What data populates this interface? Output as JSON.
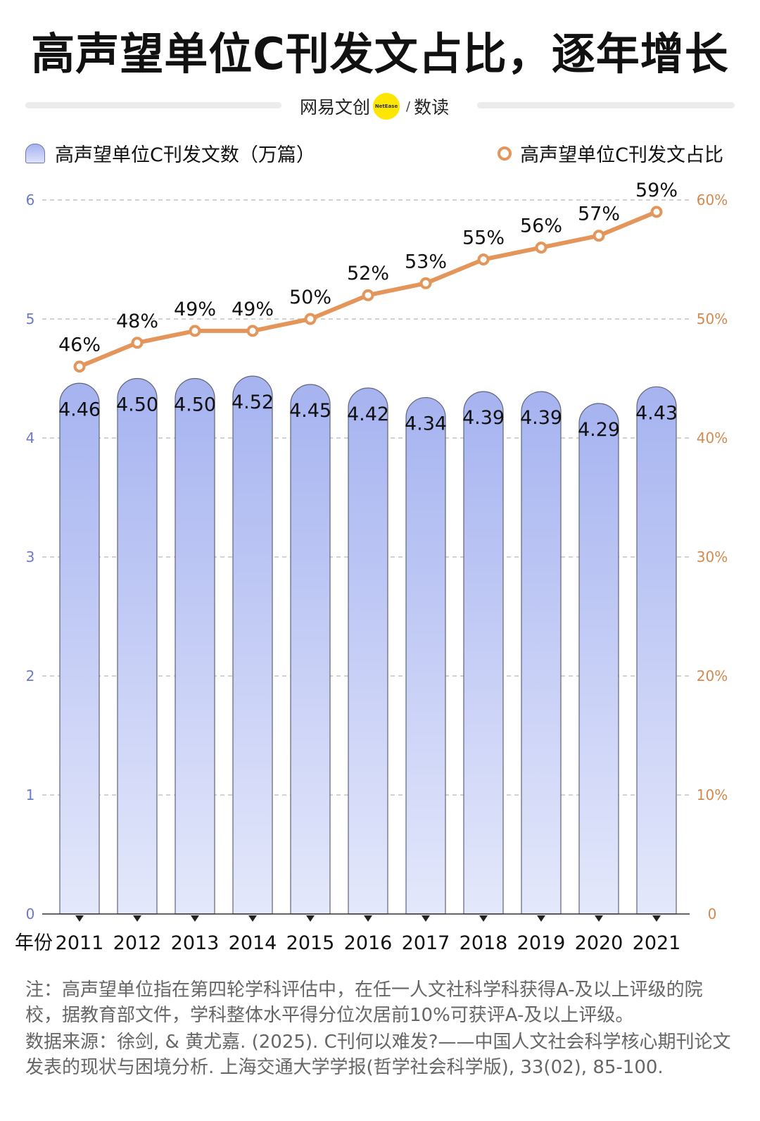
{
  "title": "高声望单位C刊发文占比，逐年增长",
  "brand": {
    "name": "网易文创",
    "logo_text": "NetEase",
    "separator": "/",
    "sub": "数读"
  },
  "legend": {
    "bars": "高声望单位C刊发文数（万篇）",
    "line": "高声望单位C刊发文占比"
  },
  "colors": {
    "bar_top": "#a6b3f0",
    "bar_bottom": "#e4e8fb",
    "bar_stroke": "#5f6577",
    "line": "#e3955a",
    "left_axis": "#6d7ac4",
    "right_axis": "#d48a4e",
    "grid": "#c4c4c4"
  },
  "chart_data": {
    "type": "bar",
    "x_label": "年份",
    "categories": [
      "2011",
      "2012",
      "2013",
      "2014",
      "2015",
      "2016",
      "2017",
      "2018",
      "2019",
      "2020",
      "2021"
    ],
    "series": [
      {
        "name": "高声望单位C刊发文数（万篇）",
        "type": "bar",
        "axis": "left",
        "values": [
          4.46,
          4.5,
          4.5,
          4.52,
          4.45,
          4.42,
          4.34,
          4.39,
          4.39,
          4.29,
          4.43
        ],
        "labels": [
          "4.46",
          "4.50",
          "4.50",
          "4.52",
          "4.45",
          "4.42",
          "4.34",
          "4.39",
          "4.39",
          "4.29",
          "4.43"
        ]
      },
      {
        "name": "高声望单位C刊发文占比",
        "type": "line",
        "axis": "right",
        "values": [
          46,
          48,
          49,
          49,
          50,
          52,
          53,
          55,
          56,
          57,
          59
        ],
        "labels": [
          "46%",
          "48%",
          "49%",
          "49%",
          "50%",
          "52%",
          "53%",
          "55%",
          "56%",
          "57%",
          "59%"
        ]
      }
    ],
    "left_axis": {
      "ylim": [
        0,
        6
      ],
      "ticks": [
        "0",
        "1",
        "2",
        "3",
        "4",
        "5",
        "6"
      ]
    },
    "right_axis": {
      "ylim": [
        0,
        60
      ],
      "ticks": [
        "0",
        "10%",
        "20%",
        "30%",
        "40%",
        "50%",
        "60%"
      ]
    },
    "grid": true,
    "legend_position": "top"
  },
  "notes": {
    "note": "注：高声望单位指在第四轮学科评估中，在任一人文社科学科获得A-及以上评级的院校，据教育部文件，学科整体水平得分位次居前10%可获评A-及以上评级。",
    "source": "数据来源：徐剑, & 黄尤嘉. (2025). C刊何以难发?——中国人文社会科学核心期刊论文发表的现状与困境分析. 上海交通大学学报(哲学社会科学版), 33(02), 85-100."
  }
}
